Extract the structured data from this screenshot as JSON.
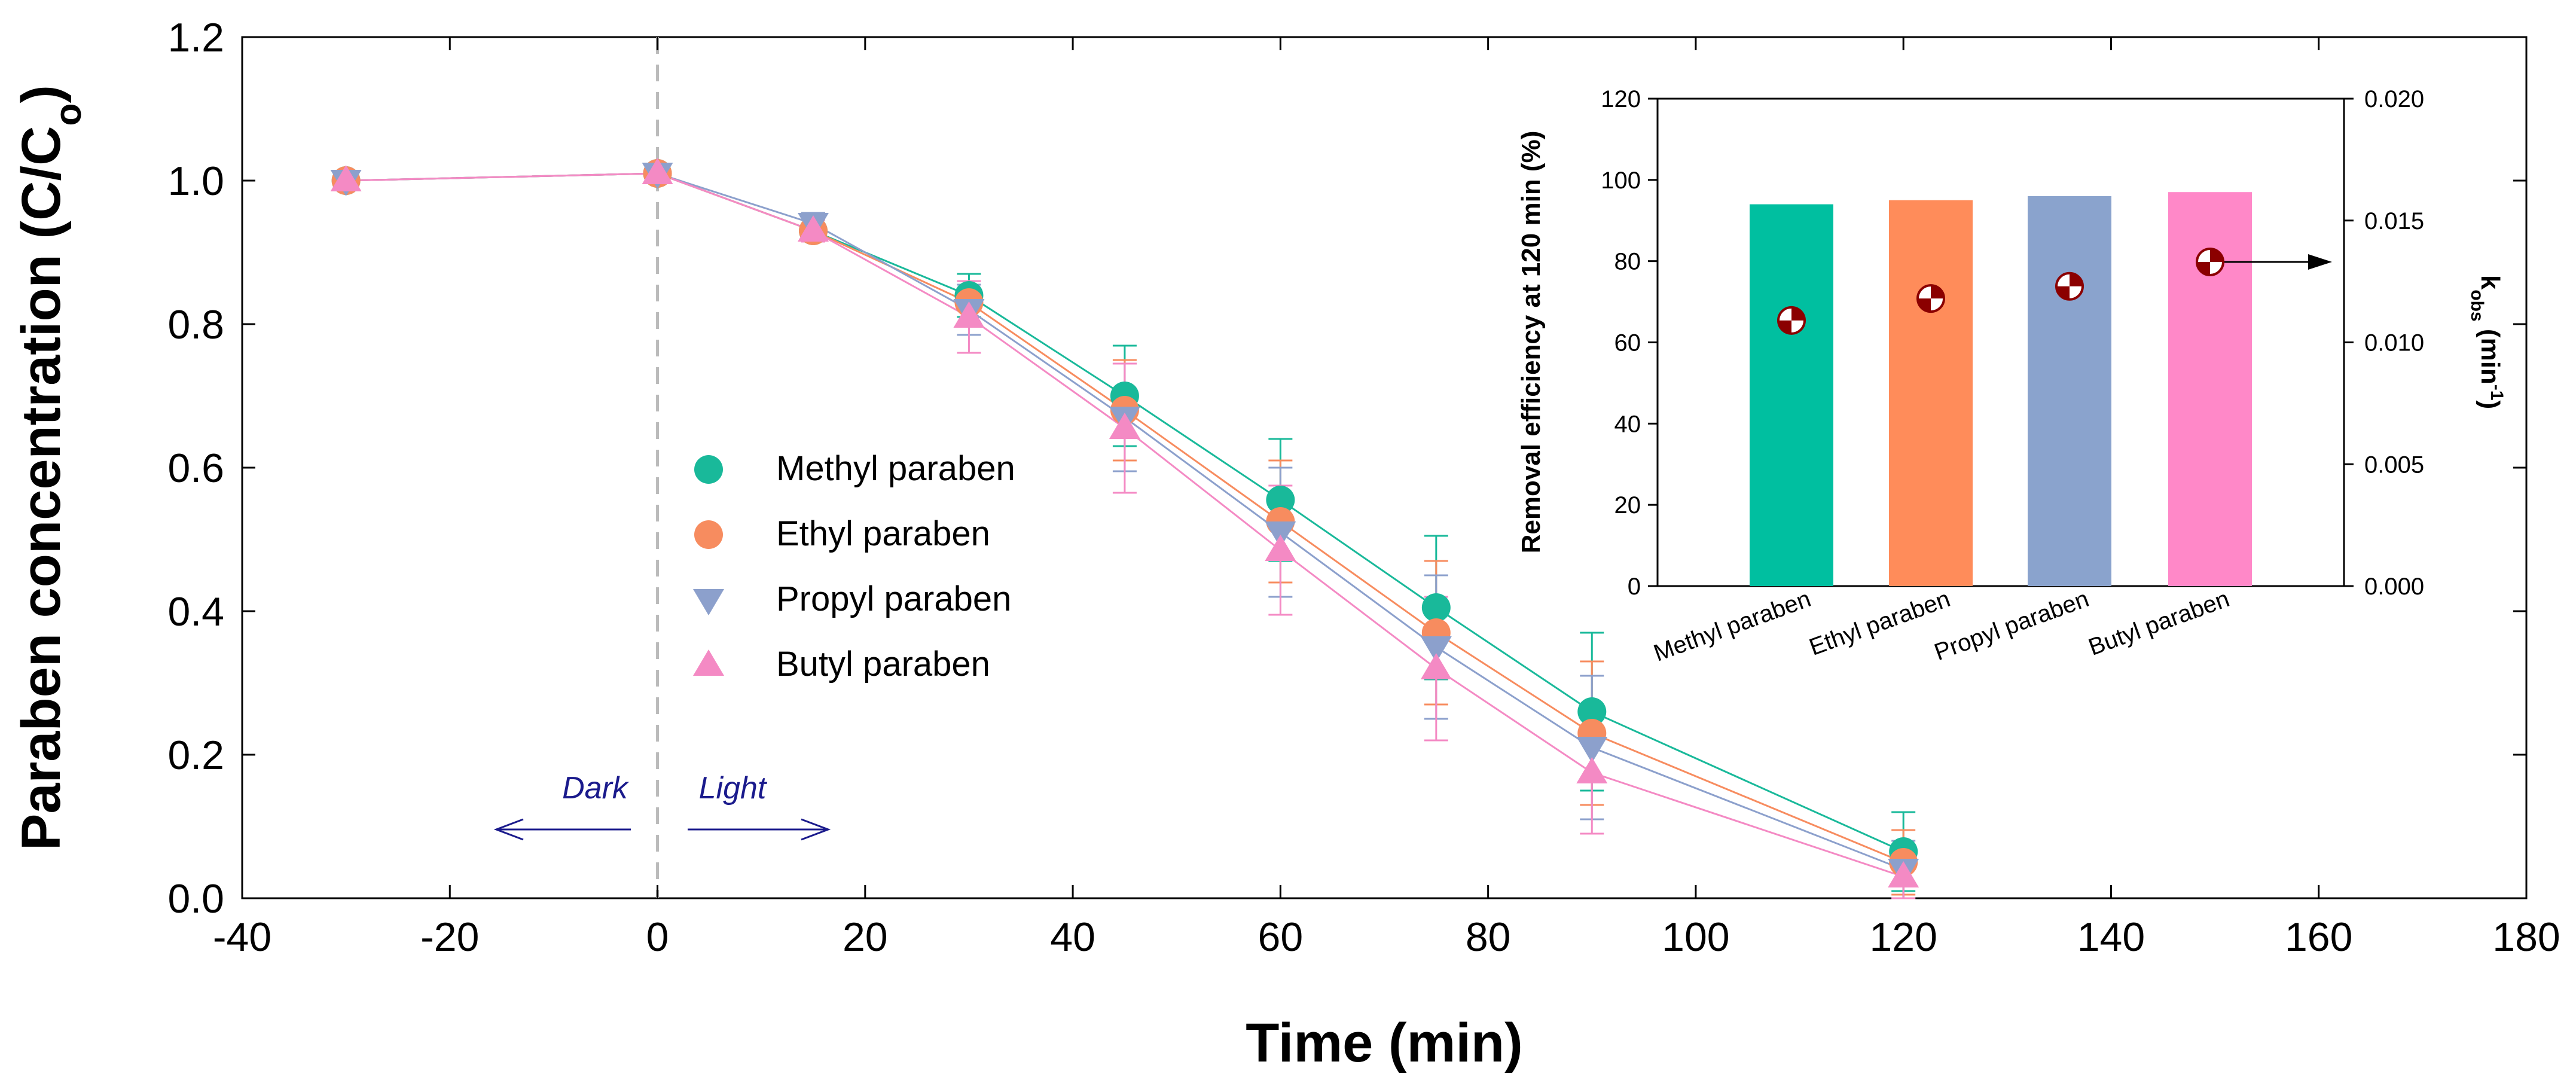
{
  "chart_data": [
    {
      "type": "line",
      "xlabel": "Time (min)",
      "ylabel": "Paraben concentration (C/C",
      "ylabel_subscript": "o",
      "ylabel_close": ")",
      "xlim": [
        -40,
        180
      ],
      "ylim": [
        0.0,
        1.2
      ],
      "xticks": [
        -40,
        -20,
        0,
        20,
        40,
        60,
        80,
        100,
        120,
        140,
        160,
        180
      ],
      "yticks": [
        "0.0",
        "0.2",
        "0.4",
        "0.6",
        "0.8",
        "1.0",
        "1.2"
      ],
      "x": [
        -30,
        0,
        15,
        30,
        45,
        60,
        75,
        90,
        120
      ],
      "series": [
        {
          "name": "Methyl paraben",
          "color": "#19b99a",
          "marker": "circle",
          "values": [
            1.0,
            1.01,
            0.93,
            0.84,
            0.7,
            0.555,
            0.405,
            0.26,
            0.065
          ],
          "errors": [
            0.01,
            0.01,
            0.015,
            0.03,
            0.07,
            0.085,
            0.1,
            0.11,
            0.055
          ]
        },
        {
          "name": "Ethyl paraben",
          "color": "#f78c5f",
          "marker": "circle",
          "values": [
            1.0,
            1.01,
            0.93,
            0.83,
            0.68,
            0.525,
            0.37,
            0.23,
            0.05
          ],
          "errors": [
            0.01,
            0.01,
            0.015,
            0.03,
            0.07,
            0.085,
            0.1,
            0.1,
            0.045
          ]
        },
        {
          "name": "Propyl paraben",
          "color": "#8ca0cc",
          "marker": "triangle-down",
          "values": [
            1.0,
            1.01,
            0.94,
            0.82,
            0.67,
            0.51,
            0.35,
            0.21,
            0.04
          ],
          "errors": [
            0.01,
            0.01,
            0.015,
            0.035,
            0.075,
            0.09,
            0.1,
            0.1,
            0.04
          ]
        },
        {
          "name": "Butyl paraben",
          "color": "#f48ac4",
          "marker": "triangle-up",
          "values": [
            1.0,
            1.01,
            0.93,
            0.81,
            0.655,
            0.485,
            0.32,
            0.175,
            0.03
          ],
          "errors": [
            0.01,
            0.01,
            0.015,
            0.05,
            0.09,
            0.09,
            0.1,
            0.085,
            0.03
          ]
        }
      ],
      "annotations": {
        "dark": "Dark",
        "light": "Light"
      }
    },
    {
      "type": "bar",
      "categories": [
        "Methyl paraben",
        "Ethyl paraben",
        "Propyl paraben",
        "Butyl paraben"
      ],
      "bar_colors": [
        "#00bfa0",
        "#ff8c5a",
        "#8aa3cd",
        "#ff88c8"
      ],
      "values": [
        94,
        95,
        96,
        97
      ],
      "ylabel": "Removal efficiency at 120 min (%)",
      "ylim": [
        0,
        120
      ],
      "yticks": [
        "0",
        "20",
        "40",
        "60",
        "80",
        "100",
        "120"
      ],
      "secondary": {
        "name": "kobs",
        "ylabel": "k",
        "ylabel_subscript": "obs",
        "ylabel_unit": " (min",
        "ylabel_superscript": "-1",
        "ylabel_close": ")",
        "ylim": [
          0,
          0.02
        ],
        "yticks": [
          "0.000",
          "0.005",
          "0.010",
          "0.015",
          "0.020"
        ],
        "values": [
          0.0109,
          0.0118,
          0.0123,
          0.0133
        ],
        "marker_color": "#8b0000"
      }
    }
  ]
}
